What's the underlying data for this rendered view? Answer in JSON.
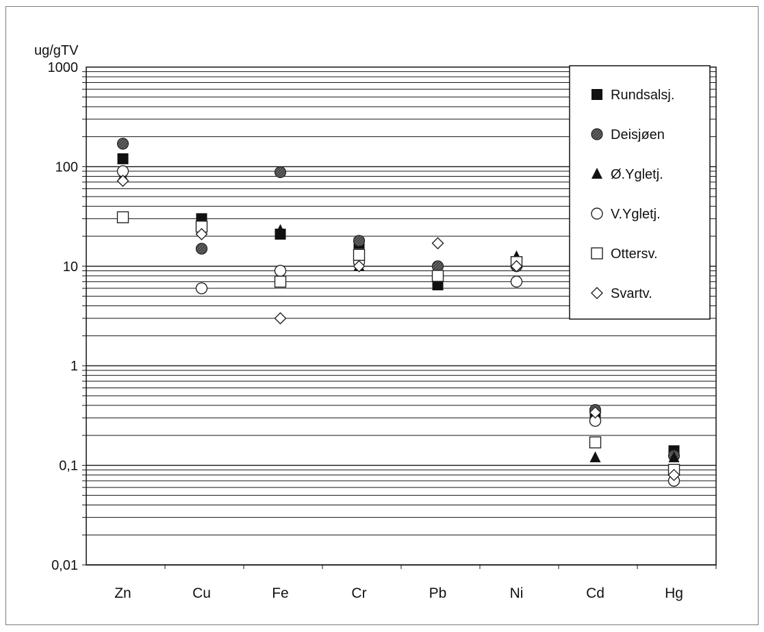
{
  "chart_data": {
    "type": "scatter",
    "y_unit_label": "ug/gTV",
    "y_scale": "log",
    "ylim": [
      0.01,
      1000
    ],
    "y_ticks": [
      "1000",
      "100",
      "10",
      "1",
      "0,1",
      "0,01"
    ],
    "y_tick_values": [
      1000,
      100,
      10,
      1,
      0.1,
      0.01
    ],
    "categories": [
      "Zn",
      "Cu",
      "Fe",
      "Cr",
      "Pb",
      "Ni",
      "Cd",
      "Hg"
    ],
    "grid": true,
    "legend_position": "top-right",
    "series": [
      {
        "name": "Rundsalsj.",
        "marker": "square-filled",
        "values": [
          120,
          30,
          21,
          17,
          6.5,
          11,
          0.33,
          0.14
        ]
      },
      {
        "name": "Deisjøen",
        "marker": "circle-hatched",
        "values": [
          170,
          15,
          88,
          18,
          10,
          10,
          0.36,
          0.125
        ]
      },
      {
        "name": "Ø.Ygletj.",
        "marker": "triangle-filled",
        "values": [
          80,
          25,
          23,
          10,
          7,
          12.5,
          0.12,
          0.12
        ]
      },
      {
        "name": "V.Ygletj.",
        "marker": "circle-open",
        "values": [
          90,
          6,
          9,
          11,
          8,
          7,
          0.28,
          0.07
        ]
      },
      {
        "name": "Ottersv.",
        "marker": "square-open",
        "values": [
          31,
          25,
          7,
          13,
          8,
          11,
          0.17,
          0.09
        ]
      },
      {
        "name": "Svartv.",
        "marker": "diamond-open",
        "values": [
          72,
          21,
          3,
          10,
          17,
          10,
          0.34,
          0.08
        ]
      }
    ]
  }
}
